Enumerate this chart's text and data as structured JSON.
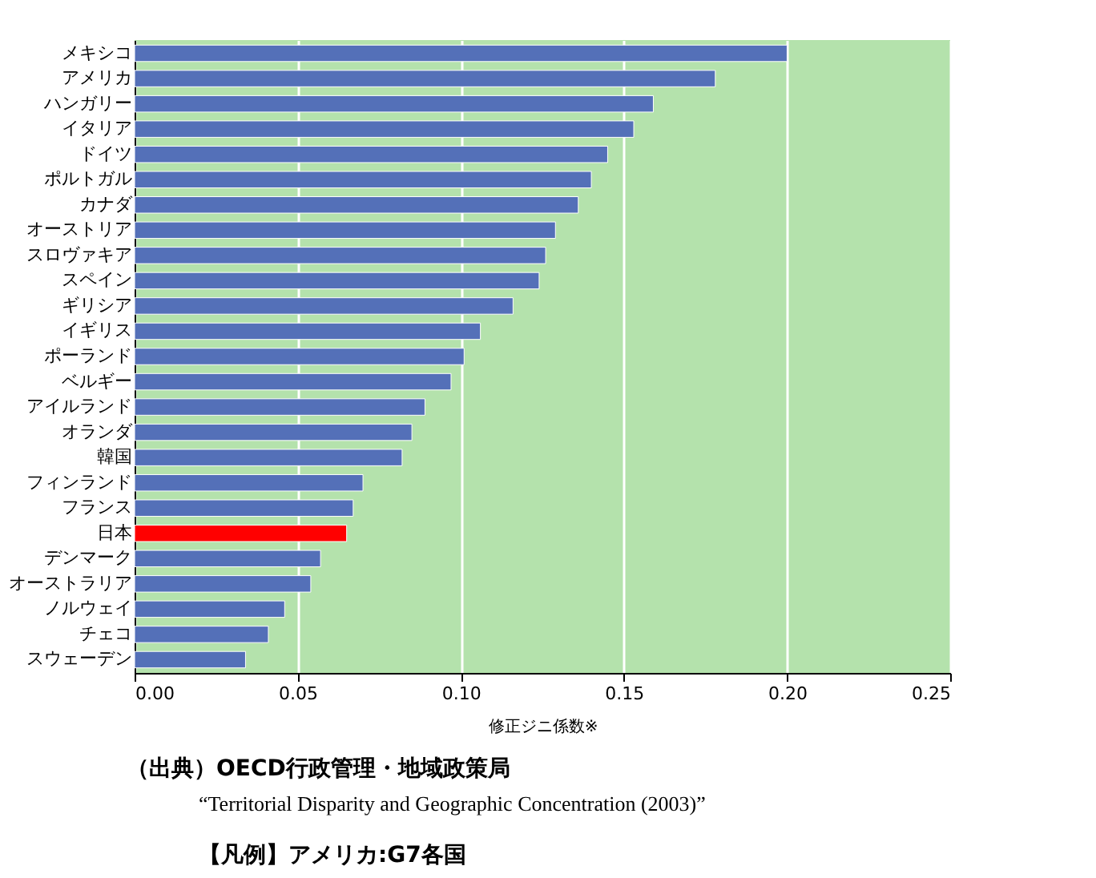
{
  "chart_data": {
    "type": "bar",
    "orientation": "horizontal",
    "categories": [
      "メキシコ",
      "アメリカ",
      "ハンガリー",
      "イタリア",
      "ドイツ",
      "ポルトガル",
      "カナダ",
      "オーストリア",
      "スロヴァキア",
      "スペイン",
      "ギリシア",
      "イギリス",
      "ポーランド",
      "ベルギー",
      "アイルランド",
      "オランダ",
      "韓国",
      "フィンランド",
      "フランス",
      "日本",
      "デンマーク",
      "オーストラリア",
      "ノルウェイ",
      "チェコ",
      "スウェーデン"
    ],
    "values": [
      0.2,
      0.178,
      0.159,
      0.153,
      0.145,
      0.14,
      0.136,
      0.129,
      0.126,
      0.124,
      0.116,
      0.106,
      0.101,
      0.097,
      0.089,
      0.085,
      0.082,
      0.07,
      0.067,
      0.065,
      0.057,
      0.054,
      0.046,
      0.041,
      0.034
    ],
    "colors": [
      "#5470b8",
      "#5470b8",
      "#5470b8",
      "#5470b8",
      "#5470b8",
      "#5470b8",
      "#5470b8",
      "#5470b8",
      "#5470b8",
      "#5470b8",
      "#5470b8",
      "#5470b8",
      "#5470b8",
      "#5470b8",
      "#5470b8",
      "#5470b8",
      "#5470b8",
      "#5470b8",
      "#5470b8",
      "#ff0000",
      "#5470b8",
      "#5470b8",
      "#5470b8",
      "#5470b8",
      "#5470b8"
    ],
    "xlabel": "修正ジニ係数※",
    "xlim": [
      0,
      0.25
    ],
    "xticks": [
      {
        "value": 0,
        "label": "0.00"
      },
      {
        "value": 0.05,
        "label": "0.05"
      },
      {
        "value": 0.1,
        "label": "0.10"
      },
      {
        "value": 0.15,
        "label": "0.15"
      },
      {
        "value": 0.2,
        "label": "0.20"
      },
      {
        "value": 0.25,
        "label": "0.25"
      }
    ],
    "grid": "x",
    "annotations": [
      "（出典）OECD行政管理・地域政策局",
      "“Territorial Disparity and Geographic Concentration (2003)”",
      "【凡例】アメリカ:G7各国"
    ]
  }
}
